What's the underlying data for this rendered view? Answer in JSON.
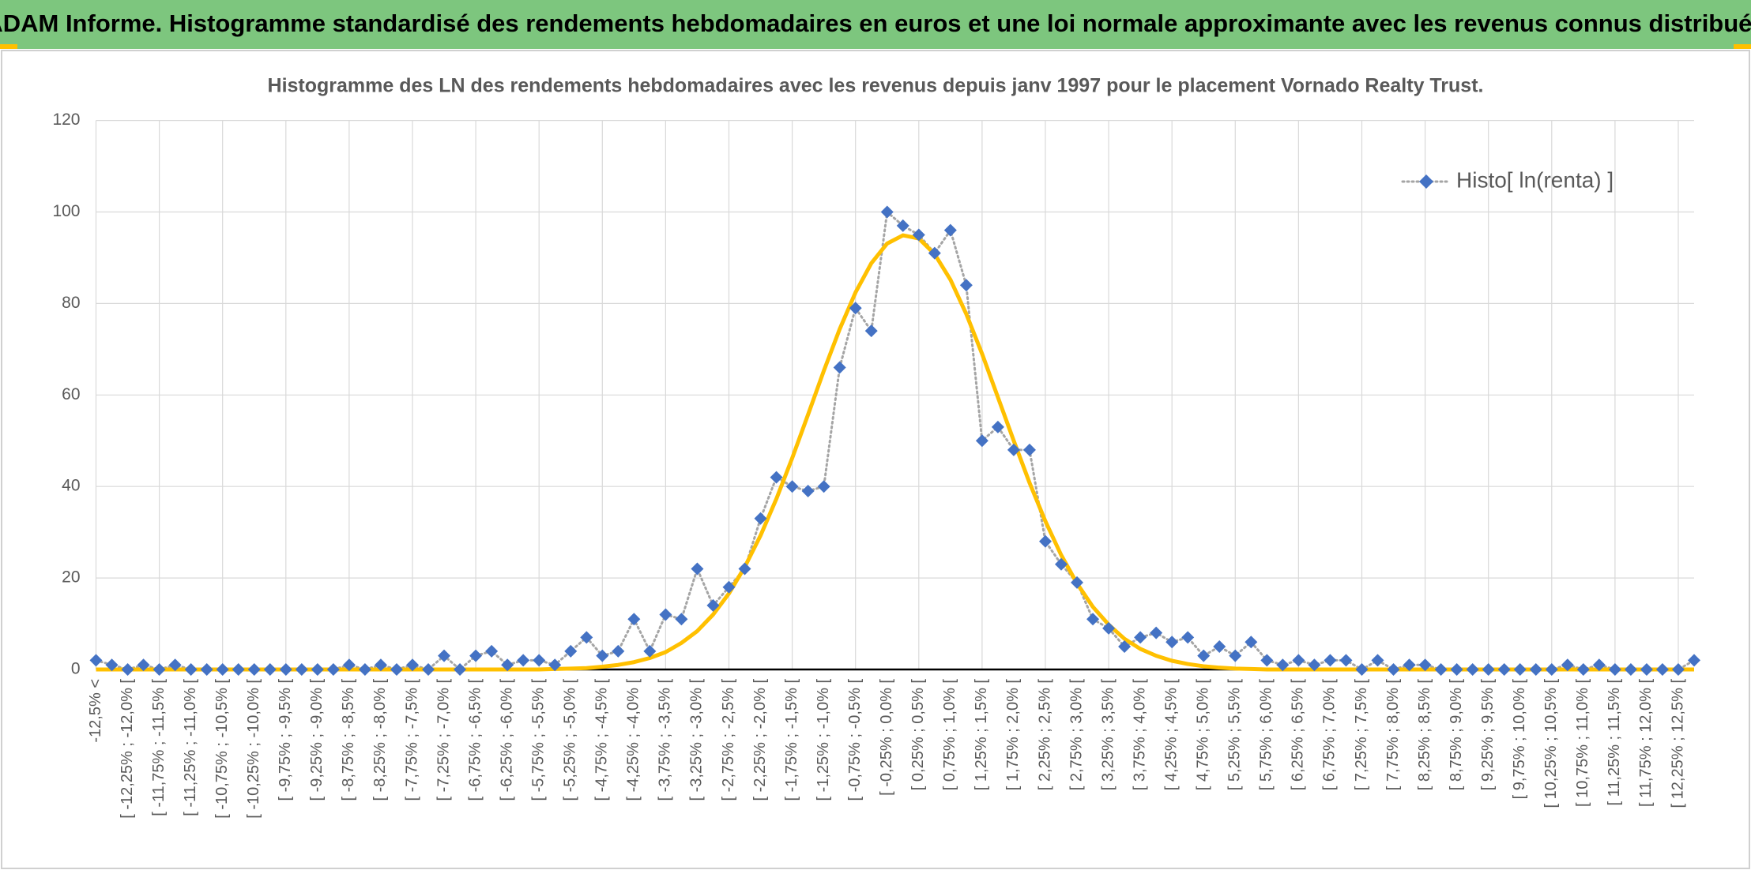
{
  "header": {
    "title": "ADAM Informe. Histogramme standardisé des rendements hebdomadaires en euros et une loi normale approximante avec les revenus connus distribués"
  },
  "chart_data": {
    "type": "line",
    "title": "Histogramme des LN des rendements hebdomadaires avec les revenus depuis janv 1997 pour le placement Vornado Realty Trust.",
    "categories": [
      "-12,5% <",
      null,
      "[ -12,25% ; -12,0% [",
      null,
      "[ -11,75% ; -11,5% [",
      null,
      "[ -11,25% ; -11,0% [",
      null,
      "[ -10,75% ; -10,5% [",
      null,
      "[ -10,25% ; -10,0% [",
      null,
      "[ -9,75% ; -9,5% [",
      null,
      "[ -9,25% ; -9,0% [",
      null,
      "[ -8,75% ; -8,5% [",
      null,
      "[ -8,25% ; -8,0% [",
      null,
      "[ -7,75% ; -7,5% [",
      null,
      "[ -7,25% ; -7,0% [",
      null,
      "[ -6,75% ; -6,5% [",
      null,
      "[ -6,25% ; -6,0% [",
      null,
      "[ -5,75% ; -5,5% [",
      null,
      "[ -5,25% ; -5,0% [",
      null,
      "[ -4,75% ; -4,5% [",
      null,
      "[ -4,25% ; -4,0% [",
      null,
      "[ -3,75% ; -3,5% [",
      null,
      "[ -3,25% ; -3,0% [",
      null,
      "[ -2,75% ; -2,5% [",
      null,
      "[ -2,25% ; -2,0% [",
      null,
      "[ -1,75% ; -1,5% [",
      null,
      "[ -1,25% ; -1,0% [",
      null,
      "[ -0,75% ; -0,5% [",
      null,
      "[ -0,25% ; 0,0% [",
      null,
      "[ 0,25% ; 0,5% [",
      null,
      "[ 0,75% ; 1,0% [",
      null,
      "[ 1,25% ; 1,5% [",
      null,
      "[ 1,75% ; 2,0% [",
      null,
      "[ 2,25% ; 2,5% [",
      null,
      "[ 2,75% ; 3,0% [",
      null,
      "[ 3,25% ; 3,5% [",
      null,
      "[ 3,75% ; 4,0% [",
      null,
      "[ 4,25% ; 4,5% [",
      null,
      "[ 4,75% ; 5,0% [",
      null,
      "[ 5,25% ; 5,5% [",
      null,
      "[ 5,75% ; 6,0% [",
      null,
      "[ 6,25% ; 6,5% [",
      null,
      "[ 6,75% ; 7,0% [",
      null,
      "[ 7,25% ; 7,5% [",
      null,
      "[ 7,75% ; 8,0% [",
      null,
      "[ 8,25% ; 8,5% [",
      null,
      "[ 8,75% ; 9,0% [",
      null,
      "[ 9,25% ; 9,5% [",
      null,
      "[ 9,75% ; 10,0% [",
      null,
      "[ 10,25% ; 10,5% [",
      null,
      "[ 10,75% ; 11,0% [",
      null,
      "[ 11,25% ; 11,5% [",
      null,
      "[ 11,75% ; 12,0% [",
      null,
      "[ 12,25% ; 12,5% [",
      null
    ],
    "series": [
      {
        "name": "Histo[ ln(renta) ]",
        "color": "#4472C4",
        "line_color": "#A5A5A5",
        "line_style": "dotted",
        "marker": "diamond",
        "values": [
          2,
          1,
          0,
          1,
          0,
          1,
          0,
          0,
          0,
          0,
          0,
          0,
          0,
          0,
          0,
          0,
          1,
          0,
          1,
          0,
          1,
          0,
          3,
          0,
          3,
          4,
          1,
          2,
          2,
          1,
          4,
          7,
          3,
          4,
          11,
          4,
          12,
          11,
          22,
          14,
          18,
          22,
          33,
          42,
          40,
          39,
          40,
          66,
          79,
          74,
          100,
          97,
          95,
          91,
          96,
          84,
          50,
          53,
          48,
          48,
          28,
          23,
          19,
          11,
          9,
          5,
          7,
          8,
          6,
          7,
          3,
          5,
          3,
          6,
          2,
          1,
          2,
          1,
          2,
          2,
          0,
          2,
          0,
          1,
          1,
          0,
          0,
          0,
          0,
          0,
          0,
          0,
          0,
          1,
          0,
          1,
          0,
          0,
          0,
          0,
          0,
          2
        ]
      },
      {
        "color": "#FFC000",
        "line_color": "#FFC000",
        "line_style": "solid",
        "marker": "none",
        "values": [
          0,
          0,
          0,
          0,
          0,
          0,
          0,
          0,
          0,
          0,
          0,
          0,
          0,
          0,
          0,
          0,
          0,
          0,
          0,
          0,
          0,
          0,
          0,
          0,
          0,
          0,
          0,
          0,
          0,
          0.1,
          0.2,
          0.3,
          0.6,
          1.0,
          1.6,
          2.5,
          3.8,
          5.8,
          8.4,
          12.0,
          16.6,
          22.4,
          29.3,
          37.3,
          46.2,
          55.7,
          65.3,
          74.4,
          82.4,
          88.8,
          93.1,
          94.9,
          94.2,
          90.8,
          85.2,
          77.7,
          69.0,
          59.5,
          50.0,
          40.8,
          32.4,
          25.0,
          18.8,
          13.7,
          9.8,
          6.7,
          4.5,
          3.0,
          1.9,
          1.2,
          0.7,
          0.4,
          0.2,
          0.1,
          0,
          0,
          0,
          0,
          0,
          0,
          0,
          0,
          0,
          0,
          0,
          0,
          0,
          0,
          0,
          0,
          0,
          0,
          0,
          0,
          0,
          0,
          0,
          0,
          0,
          0,
          0,
          0
        ]
      }
    ],
    "ylim": [
      0,
      120
    ],
    "yticks": [
      0,
      20,
      40,
      60,
      80,
      100,
      120
    ],
    "grid": true,
    "legend": "top-right"
  }
}
